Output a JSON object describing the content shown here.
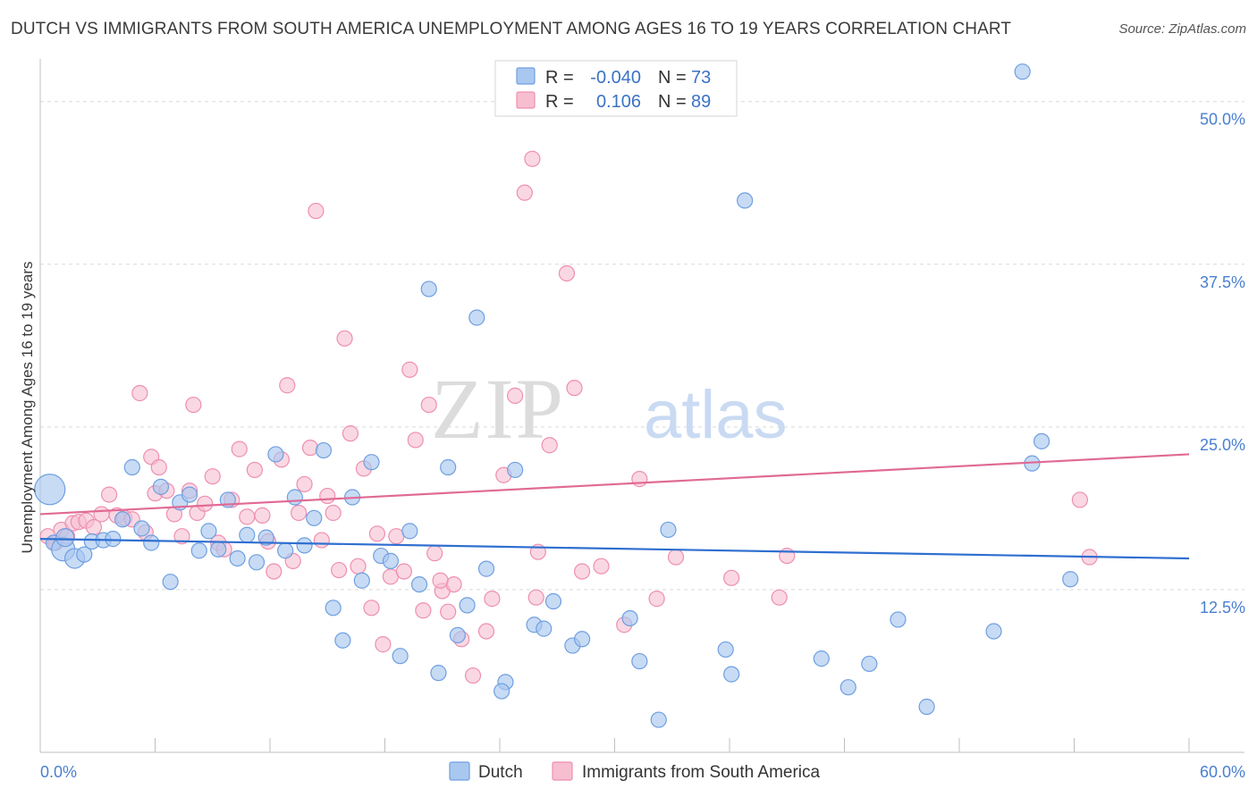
{
  "title": "DUTCH VS IMMIGRANTS FROM SOUTH AMERICA UNEMPLOYMENT AMONG AGES 16 TO 19 YEARS CORRELATION CHART",
  "source": "Source: ZipAtlas.com",
  "watermark": {
    "zip": "ZIP",
    "atlas": "atlas"
  },
  "legend_top": {
    "rows": [
      {
        "r_label": "R =",
        "r_value": "-0.040",
        "n_label": "N =",
        "n_value": "73"
      },
      {
        "r_label": "R =",
        "r_value": "0.106",
        "n_label": "N =",
        "n_value": "89"
      }
    ]
  },
  "legend_bottom": [
    "Dutch",
    "Immigrants from South America"
  ],
  "colors": {
    "blue_fill": "#a9c8f0",
    "blue_stroke": "#6f9fe0",
    "blue_line": "#2f6fd0",
    "pink_fill": "#f7bed0",
    "pink_stroke": "#ee8fb0",
    "pink_line": "#e06a95",
    "tick_text": "#4a7fd0",
    "grid": "#d9d9d9"
  },
  "chart_data": {
    "type": "scatter",
    "title": "DUTCH VS IMMIGRANTS FROM SOUTH AMERICA UNEMPLOYMENT AMONG AGES 16 TO 19 YEARS CORRELATION CHART",
    "xlabel": "",
    "ylabel": "Unemployment Among Ages 16 to 19 years",
    "xlim": [
      0,
      60
    ],
    "ylim": [
      0,
      53
    ],
    "x_tick_labels": [
      "0.0%",
      "60.0%"
    ],
    "y_ticks": [
      12.5,
      25.0,
      37.5,
      50.0
    ],
    "y_tick_labels": [
      "12.5%",
      "25.0%",
      "37.5%",
      "50.0%"
    ],
    "grid": true,
    "legend_placement": "top-center",
    "series": [
      {
        "name": "Dutch",
        "color": "#a9c8f0",
        "trend": {
          "x": [
            0,
            60
          ],
          "y": [
            16.4,
            14.9
          ]
        },
        "points": [
          [
            0.5,
            20.2
          ],
          [
            0.7,
            16.1
          ],
          [
            1.2,
            15.6
          ],
          [
            1.8,
            14.9
          ],
          [
            2.3,
            15.2
          ],
          [
            2.7,
            16.2
          ],
          [
            3.3,
            16.3
          ],
          [
            3.8,
            16.4
          ],
          [
            4.3,
            17.9
          ],
          [
            4.8,
            21.9
          ],
          [
            5.3,
            17.2
          ],
          [
            5.8,
            16.1
          ],
          [
            6.3,
            20.4
          ],
          [
            6.8,
            13.1
          ],
          [
            7.3,
            19.2
          ],
          [
            7.8,
            19.8
          ],
          [
            8.3,
            15.5
          ],
          [
            8.8,
            17.0
          ],
          [
            9.3,
            15.6
          ],
          [
            9.8,
            19.4
          ],
          [
            10.3,
            14.9
          ],
          [
            10.8,
            16.7
          ],
          [
            11.3,
            14.6
          ],
          [
            11.8,
            16.5
          ],
          [
            12.3,
            22.9
          ],
          [
            12.8,
            15.5
          ],
          [
            13.3,
            19.6
          ],
          [
            13.8,
            15.9
          ],
          [
            14.3,
            18.0
          ],
          [
            14.8,
            23.2
          ],
          [
            15.3,
            11.1
          ],
          [
            15.8,
            8.6
          ],
          [
            16.3,
            19.6
          ],
          [
            16.8,
            13.2
          ],
          [
            17.3,
            22.3
          ],
          [
            17.8,
            15.1
          ],
          [
            18.3,
            14.7
          ],
          [
            18.8,
            7.4
          ],
          [
            19.3,
            17.0
          ],
          [
            19.8,
            12.9
          ],
          [
            20.3,
            35.6
          ],
          [
            20.8,
            6.1
          ],
          [
            21.3,
            21.9
          ],
          [
            21.8,
            9.0
          ],
          [
            22.3,
            11.3
          ],
          [
            22.8,
            33.4
          ],
          [
            23.3,
            14.1
          ],
          [
            24.3,
            5.4
          ],
          [
            24.8,
            21.7
          ],
          [
            25.8,
            9.8
          ],
          [
            26.3,
            9.5
          ],
          [
            26.8,
            11.6
          ],
          [
            27.8,
            8.2
          ],
          [
            28.3,
            8.7
          ],
          [
            30.8,
            10.3
          ],
          [
            31.3,
            7.0
          ],
          [
            32.3,
            2.5
          ],
          [
            32.8,
            17.1
          ],
          [
            35.8,
            7.9
          ],
          [
            36.1,
            6.0
          ],
          [
            36.8,
            42.4
          ],
          [
            40.8,
            7.2
          ],
          [
            42.2,
            5.0
          ],
          [
            43.3,
            6.8
          ],
          [
            44.8,
            10.2
          ],
          [
            46.3,
            3.5
          ],
          [
            49.8,
            9.3
          ],
          [
            51.3,
            52.3
          ],
          [
            51.8,
            22.2
          ],
          [
            52.3,
            23.9
          ],
          [
            53.8,
            13.3
          ],
          [
            24.1,
            4.7
          ],
          [
            1.3,
            16.5
          ]
        ],
        "sizes": {
          "0": 34,
          "2": 26,
          "3": 22,
          "72": 20
        }
      },
      {
        "name": "Immigrants from South America",
        "color": "#f7bed0",
        "trend": {
          "x": [
            0,
            60
          ],
          "y": [
            18.3,
            22.9
          ]
        },
        "points": [
          [
            0.4,
            16.6
          ],
          [
            0.8,
            16.1
          ],
          [
            1.1,
            17.1
          ],
          [
            1.4,
            16.6
          ],
          [
            1.7,
            17.6
          ],
          [
            2.0,
            17.7
          ],
          [
            2.4,
            17.8
          ],
          [
            2.8,
            17.3
          ],
          [
            3.2,
            18.3
          ],
          [
            3.6,
            19.8
          ],
          [
            4.0,
            18.2
          ],
          [
            4.4,
            18.0
          ],
          [
            4.8,
            17.9
          ],
          [
            5.2,
            27.6
          ],
          [
            5.5,
            16.9
          ],
          [
            5.8,
            22.7
          ],
          [
            6.0,
            19.9
          ],
          [
            6.2,
            21.9
          ],
          [
            6.6,
            20.1
          ],
          [
            7.0,
            18.3
          ],
          [
            7.4,
            16.6
          ],
          [
            7.8,
            20.1
          ],
          [
            8.0,
            26.7
          ],
          [
            8.2,
            18.4
          ],
          [
            8.6,
            19.1
          ],
          [
            9.0,
            21.2
          ],
          [
            9.3,
            16.1
          ],
          [
            9.6,
            15.6
          ],
          [
            10.0,
            19.4
          ],
          [
            10.4,
            23.3
          ],
          [
            10.8,
            18.1
          ],
          [
            11.2,
            21.7
          ],
          [
            11.6,
            18.2
          ],
          [
            11.9,
            16.2
          ],
          [
            12.2,
            13.9
          ],
          [
            12.6,
            22.5
          ],
          [
            12.9,
            28.2
          ],
          [
            13.2,
            14.7
          ],
          [
            13.5,
            18.4
          ],
          [
            13.8,
            20.6
          ],
          [
            14.1,
            23.4
          ],
          [
            14.4,
            41.6
          ],
          [
            14.7,
            16.3
          ],
          [
            15.0,
            19.7
          ],
          [
            15.3,
            18.4
          ],
          [
            15.6,
            14.0
          ],
          [
            15.9,
            31.8
          ],
          [
            16.2,
            24.5
          ],
          [
            16.6,
            14.3
          ],
          [
            16.9,
            21.8
          ],
          [
            17.3,
            11.1
          ],
          [
            17.6,
            16.8
          ],
          [
            17.9,
            8.3
          ],
          [
            18.3,
            13.5
          ],
          [
            18.6,
            16.6
          ],
          [
            19.0,
            13.9
          ],
          [
            19.3,
            29.4
          ],
          [
            19.6,
            24.0
          ],
          [
            20.0,
            10.9
          ],
          [
            20.3,
            26.7
          ],
          [
            20.6,
            15.3
          ],
          [
            21.0,
            12.4
          ],
          [
            21.3,
            10.8
          ],
          [
            21.6,
            12.9
          ],
          [
            22.0,
            8.7
          ],
          [
            22.6,
            5.9
          ],
          [
            23.3,
            9.3
          ],
          [
            23.6,
            11.8
          ],
          [
            24.2,
            21.3
          ],
          [
            24.8,
            27.4
          ],
          [
            25.3,
            43.0
          ],
          [
            25.7,
            45.6
          ],
          [
            25.9,
            11.9
          ],
          [
            26.0,
            15.4
          ],
          [
            26.6,
            23.6
          ],
          [
            27.5,
            36.8
          ],
          [
            27.9,
            28.0
          ],
          [
            28.3,
            13.9
          ],
          [
            29.3,
            14.3
          ],
          [
            30.5,
            9.8
          ],
          [
            31.3,
            21.0
          ],
          [
            32.2,
            11.8
          ],
          [
            33.2,
            15.0
          ],
          [
            38.6,
            11.9
          ],
          [
            39.0,
            15.1
          ],
          [
            54.3,
            19.4
          ],
          [
            54.8,
            15.0
          ],
          [
            36.1,
            13.4
          ],
          [
            20.9,
            13.2
          ]
        ]
      }
    ]
  }
}
